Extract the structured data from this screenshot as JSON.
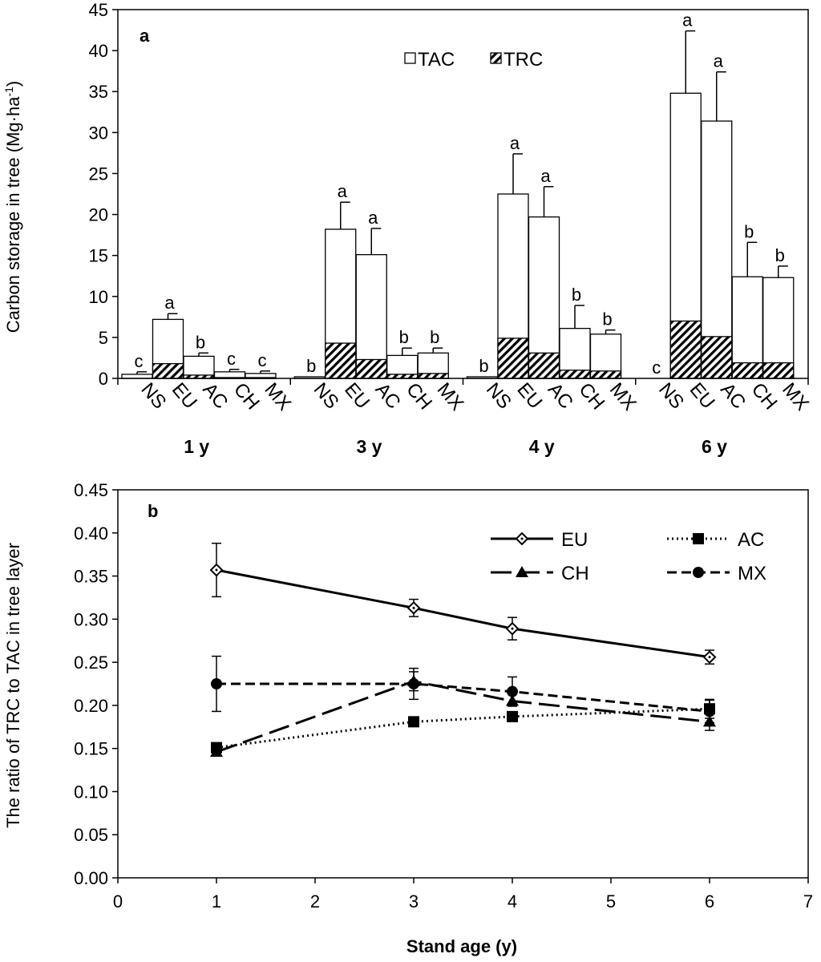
{
  "chart_data": [
    {
      "panel": "a",
      "type": "bar",
      "stacked": true,
      "ylabel": "Carbon storage in tree (Mg·ha",
      "ylabel_sup": "-1",
      "ylabel_close": ")",
      "ylim": [
        0,
        45
      ],
      "yticks": [
        "0",
        "5",
        "10",
        "15",
        "20",
        "25",
        "30",
        "35",
        "40",
        "45"
      ],
      "legend": [
        {
          "name": "TAC",
          "pattern": "white"
        },
        {
          "name": "TRC",
          "pattern": "hatch"
        }
      ],
      "categories": [
        "NS",
        "EU",
        "AC",
        "CH",
        "MX"
      ],
      "groups": [
        {
          "label": "1 y",
          "TAC": [
            0.5,
            7.2,
            2.7,
            0.8,
            0.6
          ],
          "TRC": [
            0,
            1.8,
            0.4,
            0.1,
            0.1
          ],
          "error": [
            0.3,
            0.7,
            0.4,
            0.3,
            0.3
          ],
          "letters": [
            "c",
            "a",
            "b",
            "c",
            "c"
          ]
        },
        {
          "label": "3 y",
          "TAC": [
            0.2,
            18.2,
            15.1,
            2.8,
            3.1
          ],
          "TRC": [
            0,
            4.3,
            2.3,
            0.5,
            0.6
          ],
          "error": [
            0,
            3.3,
            3.2,
            0.9,
            0.6
          ],
          "letters": [
            "b",
            "a",
            "a",
            "b",
            "b"
          ]
        },
        {
          "label": "4 y",
          "TAC": [
            0.2,
            22.5,
            19.7,
            6.1,
            5.4
          ],
          "TRC": [
            0,
            4.9,
            3.1,
            1.0,
            0.9
          ],
          "error": [
            0,
            4.9,
            3.7,
            2.8,
            0.5
          ],
          "letters": [
            "b",
            "a",
            "a",
            "b",
            "b"
          ]
        },
        {
          "label": "6 y",
          "TAC": [
            0,
            34.8,
            31.4,
            12.4,
            12.3
          ],
          "TRC": [
            0,
            7.0,
            5.1,
            1.9,
            1.9
          ],
          "error": [
            0,
            7.6,
            6.0,
            4.2,
            1.4
          ],
          "letters": [
            "c",
            "a",
            "a",
            "b",
            "b"
          ]
        }
      ]
    },
    {
      "panel": "b",
      "type": "line",
      "xlabel": "Stand age (y)",
      "ylabel": "The ratio of  TRC to TAC in tree layer",
      "xlim": [
        0,
        7
      ],
      "ylim": [
        0,
        0.45
      ],
      "xticks": [
        "0",
        "1",
        "2",
        "3",
        "4",
        "5",
        "6",
        "7"
      ],
      "yticks": [
        "0.00",
        "0.05",
        "0.10",
        "0.15",
        "0.20",
        "0.25",
        "0.30",
        "0.35",
        "0.40",
        "0.45"
      ],
      "x": [
        1,
        3,
        4,
        6
      ],
      "series": [
        {
          "name": "EU",
          "values": [
            0.357,
            0.313,
            0.289,
            0.256
          ],
          "error": [
            0.031,
            0.01,
            0.013,
            0.008
          ],
          "marker": "diamond-open",
          "line": "solid"
        },
        {
          "name": "AC",
          "values": [
            0.151,
            0.181,
            0.187,
            0.196
          ],
          "error": [
            0,
            0,
            0,
            0.011
          ],
          "marker": "square",
          "line": "dotted"
        },
        {
          "name": "CH",
          "values": [
            0.146,
            0.228,
            0.205,
            0.181
          ],
          "error": [
            0,
            0.011,
            0,
            0.01
          ],
          "marker": "triangle",
          "line": "long-dash"
        },
        {
          "name": "MX",
          "values": [
            0.225,
            0.225,
            0.216,
            0.193
          ],
          "error": [
            0.032,
            0.018,
            0.017,
            0.013
          ],
          "marker": "circle",
          "line": "dash"
        }
      ]
    }
  ]
}
